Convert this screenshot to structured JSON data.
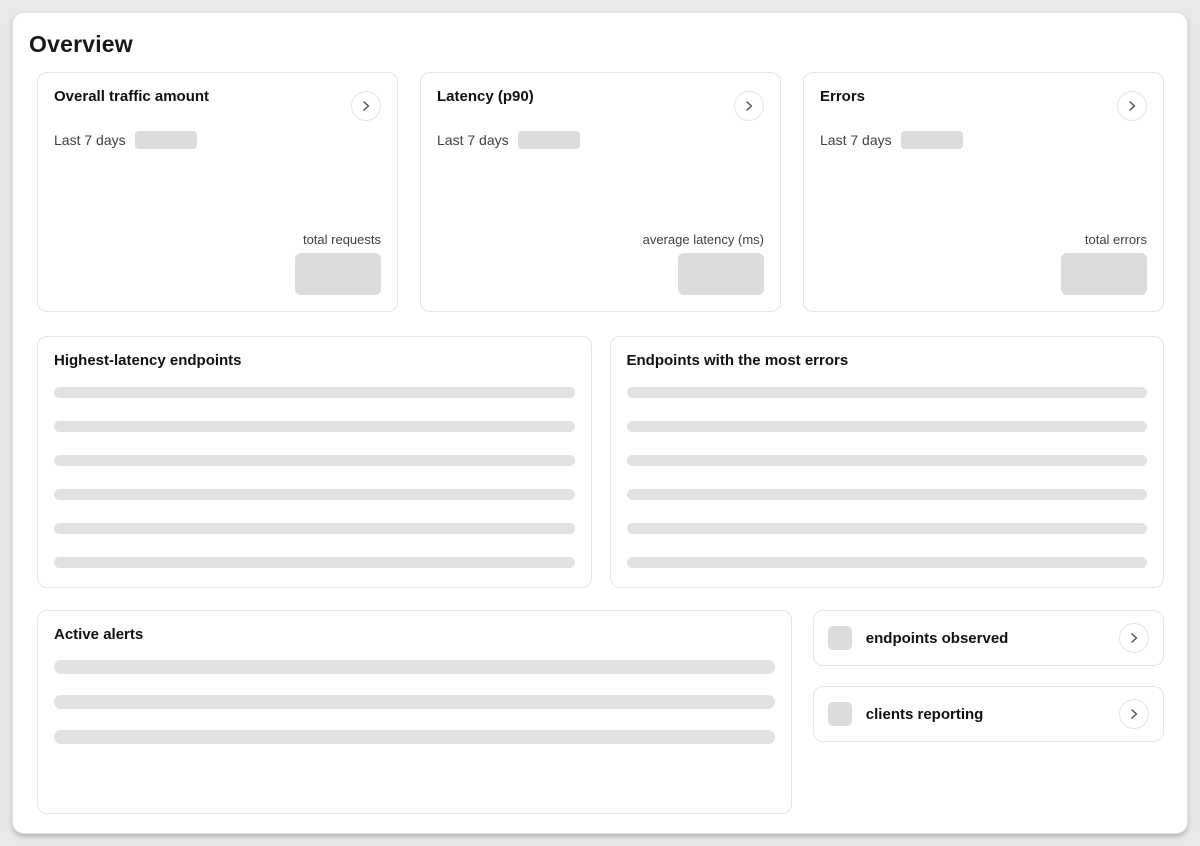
{
  "page": {
    "title": "Overview"
  },
  "colors": {
    "skeleton-fill": "#dcdcdc",
    "bar-fill": "#e2e2e2",
    "card-border": "#e5e5e5",
    "page-bg": "#e9e9e9"
  },
  "stat_cards": [
    {
      "title": "Overall traffic amount",
      "subtitle": "Last 7 days",
      "footer_label": "total requests",
      "action_icon": "chevron-right"
    },
    {
      "title": "Latency (p90)",
      "subtitle": "Last 7 days",
      "footer_label": "average latency (ms)",
      "action_icon": "chevron-right"
    },
    {
      "title": "Errors",
      "subtitle": "Last 7 days",
      "footer_label": "total errors",
      "action_icon": "chevron-right"
    }
  ],
  "list_cards": [
    {
      "title": "Highest-latency endpoints",
      "skeleton_rows": 6
    },
    {
      "title": "Endpoints with the most errors",
      "skeleton_rows": 6
    }
  ],
  "alerts_card": {
    "title": "Active alerts",
    "skeleton_rows": 3
  },
  "summary_cards": [
    {
      "label": "endpoints observed",
      "action_icon": "chevron-right"
    },
    {
      "label": "clients reporting",
      "action_icon": "chevron-right"
    }
  ]
}
